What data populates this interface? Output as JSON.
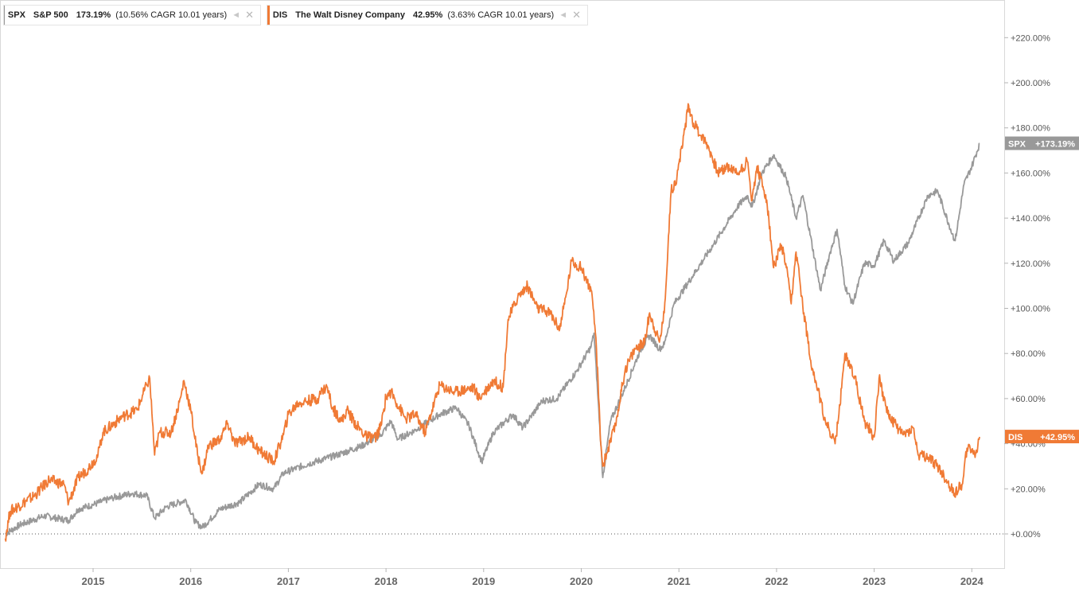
{
  "chart_data": {
    "type": "line",
    "x_axis": {
      "ticks": [
        "2015",
        "2016",
        "2017",
        "2018",
        "2019",
        "2020",
        "2021",
        "2022",
        "2023",
        "2024"
      ],
      "range": [
        "2014-02",
        "2024-02"
      ]
    },
    "y_axis": {
      "ticks": [
        "+0.00%",
        "+20.00%",
        "+40.00%",
        "+60.00%",
        "+80.00%",
        "+100.00%",
        "+120.00%",
        "+140.00%",
        "+160.00%",
        "+180.00%",
        "+200.00%",
        "+220.00%"
      ],
      "range": [
        -15,
        235
      ],
      "unit": "%"
    },
    "zero_line": true,
    "legend_placement": "top-left",
    "series": [
      {
        "symbol": "SPX",
        "name": "S&P 500",
        "return_label": "173.19%",
        "cagr_label": "(10.56% CAGR 10.01 years)",
        "end_label": "+173.19%",
        "color": "#999999",
        "points": [
          [
            2014.1,
            0
          ],
          [
            2014.25,
            4
          ],
          [
            2014.5,
            8
          ],
          [
            2014.75,
            6
          ],
          [
            2014.85,
            11
          ],
          [
            2015.0,
            13
          ],
          [
            2015.2,
            16
          ],
          [
            2015.4,
            18
          ],
          [
            2015.55,
            17
          ],
          [
            2015.63,
            7
          ],
          [
            2015.75,
            12
          ],
          [
            2015.95,
            15
          ],
          [
            2016.05,
            5
          ],
          [
            2016.12,
            3
          ],
          [
            2016.3,
            11
          ],
          [
            2016.5,
            14
          ],
          [
            2016.7,
            22
          ],
          [
            2016.85,
            20
          ],
          [
            2016.95,
            27
          ],
          [
            2017.2,
            31
          ],
          [
            2017.5,
            35
          ],
          [
            2017.75,
            39
          ],
          [
            2017.95,
            44
          ],
          [
            2018.05,
            50
          ],
          [
            2018.12,
            42
          ],
          [
            2018.3,
            46
          ],
          [
            2018.55,
            53
          ],
          [
            2018.72,
            56
          ],
          [
            2018.85,
            48
          ],
          [
            2018.98,
            32
          ],
          [
            2019.1,
            45
          ],
          [
            2019.3,
            53
          ],
          [
            2019.4,
            47
          ],
          [
            2019.6,
            59
          ],
          [
            2019.75,
            60
          ],
          [
            2019.95,
            72
          ],
          [
            2020.1,
            83
          ],
          [
            2020.13,
            89
          ],
          [
            2020.2,
            40
          ],
          [
            2020.22,
            25
          ],
          [
            2020.3,
            50
          ],
          [
            2020.45,
            65
          ],
          [
            2020.6,
            81
          ],
          [
            2020.7,
            88
          ],
          [
            2020.8,
            82
          ],
          [
            2020.85,
            84
          ],
          [
            2020.95,
            102
          ],
          [
            2021.15,
            115
          ],
          [
            2021.35,
            128
          ],
          [
            2021.6,
            145
          ],
          [
            2021.7,
            150
          ],
          [
            2021.75,
            145
          ],
          [
            2021.85,
            160
          ],
          [
            2021.97,
            168
          ],
          [
            2022.1,
            158
          ],
          [
            2022.2,
            140
          ],
          [
            2022.27,
            150
          ],
          [
            2022.45,
            108
          ],
          [
            2022.55,
            125
          ],
          [
            2022.62,
            135
          ],
          [
            2022.7,
            110
          ],
          [
            2022.78,
            102
          ],
          [
            2022.9,
            120
          ],
          [
            2023.0,
            119
          ],
          [
            2023.1,
            130
          ],
          [
            2023.2,
            121
          ],
          [
            2023.35,
            129
          ],
          [
            2023.55,
            150
          ],
          [
            2023.65,
            152
          ],
          [
            2023.8,
            133
          ],
          [
            2023.83,
            130
          ],
          [
            2023.92,
            155
          ],
          [
            2024.0,
            163
          ],
          [
            2024.08,
            173
          ]
        ]
      },
      {
        "symbol": "DIS",
        "name": "The Walt Disney Company",
        "return_label": "42.95%",
        "cagr_label": "(3.63% CAGR 10.01 years)",
        "end_label": "+42.95%",
        "color": "#f07a35",
        "points": [
          [
            2014.1,
            -2
          ],
          [
            2014.15,
            10
          ],
          [
            2014.4,
            17
          ],
          [
            2014.55,
            24
          ],
          [
            2014.7,
            22
          ],
          [
            2014.75,
            14
          ],
          [
            2014.85,
            25
          ],
          [
            2014.95,
            29
          ],
          [
            2015.05,
            35
          ],
          [
            2015.1,
            45
          ],
          [
            2015.3,
            52
          ],
          [
            2015.45,
            55
          ],
          [
            2015.55,
            66
          ],
          [
            2015.58,
            69
          ],
          [
            2015.63,
            35
          ],
          [
            2015.68,
            45
          ],
          [
            2015.8,
            45
          ],
          [
            2015.9,
            61
          ],
          [
            2015.93,
            68
          ],
          [
            2016.0,
            55
          ],
          [
            2016.07,
            35
          ],
          [
            2016.12,
            27
          ],
          [
            2016.18,
            39
          ],
          [
            2016.3,
            42
          ],
          [
            2016.38,
            49
          ],
          [
            2016.45,
            40
          ],
          [
            2016.6,
            43
          ],
          [
            2016.7,
            37
          ],
          [
            2016.85,
            32
          ],
          [
            2016.95,
            44
          ],
          [
            2017.0,
            53
          ],
          [
            2017.1,
            58
          ],
          [
            2017.3,
            60
          ],
          [
            2017.35,
            64
          ],
          [
            2017.4,
            65
          ],
          [
            2017.45,
            56
          ],
          [
            2017.55,
            50
          ],
          [
            2017.6,
            55
          ],
          [
            2017.7,
            48
          ],
          [
            2017.8,
            43
          ],
          [
            2017.9,
            43
          ],
          [
            2017.95,
            48
          ],
          [
            2018.0,
            61
          ],
          [
            2018.05,
            63
          ],
          [
            2018.2,
            51
          ],
          [
            2018.3,
            53
          ],
          [
            2018.4,
            45
          ],
          [
            2018.55,
            66
          ],
          [
            2018.7,
            63
          ],
          [
            2018.9,
            65
          ],
          [
            2018.95,
            60
          ],
          [
            2019.1,
            68
          ],
          [
            2019.2,
            65
          ],
          [
            2019.25,
            95
          ],
          [
            2019.35,
            105
          ],
          [
            2019.45,
            110
          ],
          [
            2019.55,
            100
          ],
          [
            2019.68,
            98
          ],
          [
            2019.78,
            91
          ],
          [
            2019.85,
            107
          ],
          [
            2019.9,
            121
          ],
          [
            2020.0,
            118
          ],
          [
            2020.1,
            108
          ],
          [
            2020.15,
            87
          ],
          [
            2020.2,
            40
          ],
          [
            2020.22,
            30
          ],
          [
            2020.35,
            48
          ],
          [
            2020.45,
            73
          ],
          [
            2020.55,
            82
          ],
          [
            2020.65,
            85
          ],
          [
            2020.7,
            98
          ],
          [
            2020.8,
            85
          ],
          [
            2020.85,
            98
          ],
          [
            2020.92,
            152
          ],
          [
            2020.98,
            158
          ],
          [
            2021.05,
            177
          ],
          [
            2021.1,
            190
          ],
          [
            2021.15,
            182
          ],
          [
            2021.3,
            172
          ],
          [
            2021.4,
            160
          ],
          [
            2021.5,
            163
          ],
          [
            2021.6,
            160
          ],
          [
            2021.7,
            165
          ],
          [
            2021.75,
            148
          ],
          [
            2021.8,
            163
          ],
          [
            2021.9,
            148
          ],
          [
            2021.97,
            118
          ],
          [
            2022.05,
            128
          ],
          [
            2022.1,
            118
          ],
          [
            2022.15,
            102
          ],
          [
            2022.2,
            125
          ],
          [
            2022.28,
            98
          ],
          [
            2022.35,
            77
          ],
          [
            2022.4,
            68
          ],
          [
            2022.5,
            50
          ],
          [
            2022.6,
            40
          ],
          [
            2022.65,
            57
          ],
          [
            2022.7,
            80
          ],
          [
            2022.8,
            70
          ],
          [
            2022.9,
            50
          ],
          [
            2023.0,
            43
          ],
          [
            2023.05,
            69
          ],
          [
            2023.15,
            52
          ],
          [
            2023.3,
            44
          ],
          [
            2023.4,
            47
          ],
          [
            2023.45,
            35
          ],
          [
            2023.55,
            34
          ],
          [
            2023.65,
            30
          ],
          [
            2023.75,
            23
          ],
          [
            2023.82,
            18
          ],
          [
            2023.9,
            22
          ],
          [
            2023.95,
            38
          ],
          [
            2024.05,
            36
          ],
          [
            2024.08,
            43
          ]
        ]
      }
    ]
  }
}
